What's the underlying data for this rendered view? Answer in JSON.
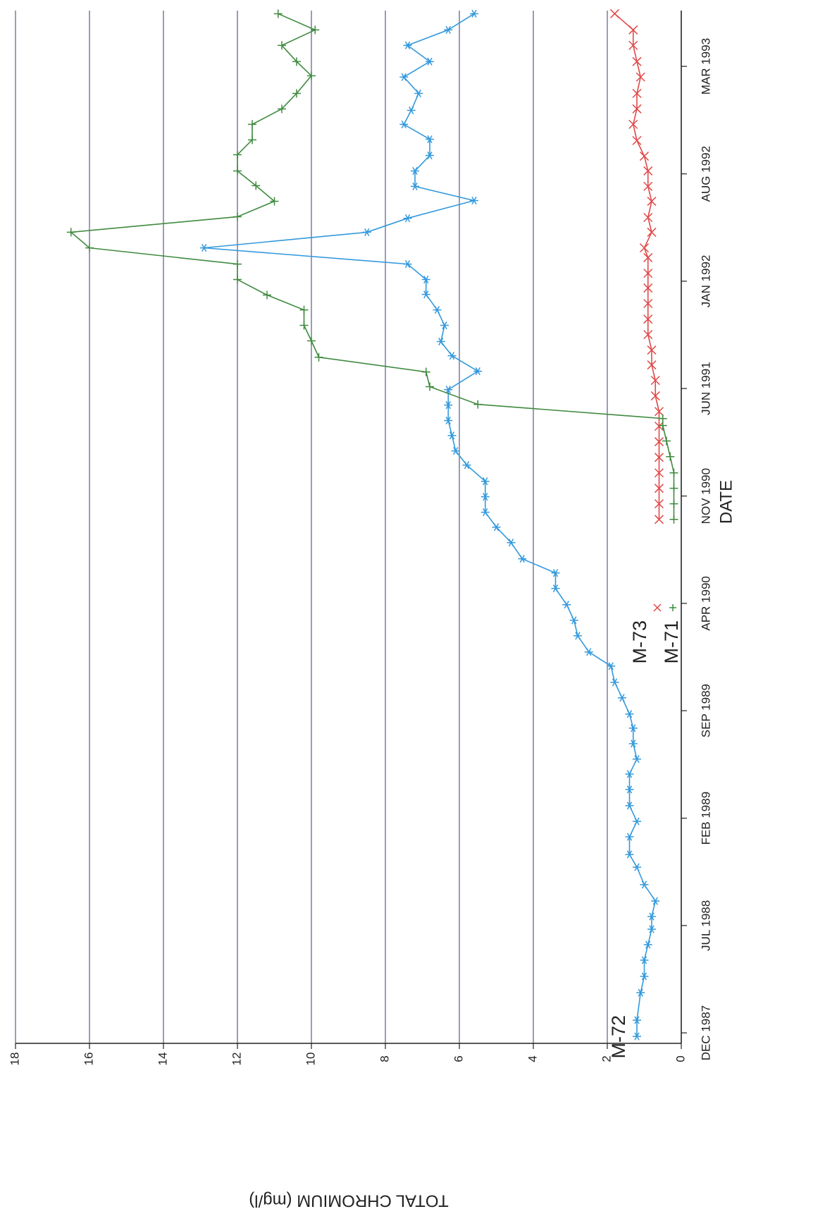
{
  "chart_data": {
    "type": "line",
    "x_label": "DATE",
    "y_label": "TOTAL CHROMIUM (mg/l)",
    "xlim": [
      1987.86,
      1993.47
    ],
    "xticks": [
      {
        "value": 1987.917,
        "label": "DEC 1987"
      },
      {
        "value": 1988.5,
        "label": "JUL 1988"
      },
      {
        "value": 1989.083,
        "label": "FEB 1989"
      },
      {
        "value": 1989.667,
        "label": "SEP 1989"
      },
      {
        "value": 1990.25,
        "label": "APR 1990"
      },
      {
        "value": 1990.833,
        "label": "NOV 1990"
      },
      {
        "value": 1991.417,
        "label": "JUN 1991"
      },
      {
        "value": 1992.0,
        "label": "JAN 1992"
      },
      {
        "value": 1992.583,
        "label": "AUG 1992"
      },
      {
        "value": 1993.167,
        "label": "MAR 1993"
      }
    ],
    "ylim": [
      0,
      18
    ],
    "yticks": [
      0,
      2,
      4,
      6,
      8,
      10,
      12,
      14,
      16,
      18
    ],
    "grid": true,
    "series": [
      {
        "name": "M-72",
        "color": "#3399dd",
        "marker": "asterisk",
        "x": [
          1987.898,
          1987.986,
          1988.135,
          1988.224,
          1988.312,
          1988.396,
          1988.48,
          1988.549,
          1988.633,
          1988.722,
          1988.817,
          1988.886,
          1988.982,
          1989.066,
          1989.151,
          1989.239,
          1989.323,
          1989.404,
          1989.488,
          1989.572,
          1989.649,
          1989.737,
          1989.821,
          1989.909,
          1989.986,
          1990.074,
          1990.158,
          1990.243,
          1990.331,
          1990.415,
          1990.492,
          1990.58,
          1990.664,
          1990.745,
          1990.829,
          1990.913,
          1991.001,
          1991.078,
          1991.162,
          1991.243,
          1991.327,
          1991.411,
          1991.511,
          1991.595,
          1991.672,
          1991.76,
          1991.844,
          1991.928,
          1992.009,
          1992.093,
          1992.181,
          1992.266,
          1992.342,
          1992.438,
          1992.515,
          1992.599,
          1992.683,
          1992.771,
          1992.852,
          1992.928,
          1993.02,
          1993.109,
          1993.193,
          1993.281,
          1993.365,
          1993.453
        ],
        "values": [
          1.2,
          1.2,
          1.1,
          1.0,
          1.0,
          0.9,
          0.8,
          0.8,
          0.7,
          1.0,
          1.2,
          1.4,
          1.4,
          1.2,
          1.4,
          1.4,
          1.4,
          1.2,
          1.3,
          1.3,
          1.4,
          1.6,
          1.8,
          1.9,
          2.5,
          2.8,
          2.9,
          3.1,
          3.4,
          3.4,
          4.3,
          4.6,
          5.0,
          5.3,
          5.3,
          5.3,
          5.8,
          6.1,
          6.2,
          6.3,
          6.3,
          6.3,
          5.5,
          6.2,
          6.5,
          6.4,
          6.6,
          6.9,
          6.9,
          7.4,
          12.9,
          8.5,
          7.4,
          5.6,
          7.2,
          7.2,
          6.8,
          6.8,
          7.5,
          7.3,
          7.1,
          7.5,
          6.8,
          7.4,
          6.3,
          5.6
        ]
      },
      {
        "name": "M-73",
        "color": "#e04848",
        "marker": "cross",
        "x": [
          1990.706,
          1990.791,
          1990.875,
          1990.959,
          1991.043,
          1991.128,
          1991.212,
          1991.292,
          1991.377,
          1991.461,
          1991.545,
          1991.626,
          1991.71,
          1991.794,
          1991.879,
          1991.963,
          1992.043,
          1992.128,
          1992.181,
          1992.266,
          1992.346,
          1992.434,
          1992.515,
          1992.599,
          1992.679,
          1992.764,
          1992.852,
          1992.936,
          1993.02,
          1993.109,
          1993.193,
          1993.281,
          1993.365,
          1993.453
        ],
        "values": [
          0.6,
          0.6,
          0.6,
          0.6,
          0.6,
          0.6,
          0.6,
          0.6,
          0.7,
          0.7,
          0.8,
          0.8,
          0.9,
          0.9,
          0.9,
          0.9,
          0.9,
          0.9,
          1.0,
          0.8,
          0.9,
          0.8,
          0.9,
          0.9,
          1.0,
          1.2,
          1.3,
          1.2,
          1.2,
          1.1,
          1.2,
          1.3,
          1.3,
          1.8
        ]
      },
      {
        "name": "M-71",
        "color": "#3f8a3f",
        "marker": "plus",
        "x": [
          1990.706,
          1990.791,
          1990.875,
          1990.959,
          1991.047,
          1991.132,
          1991.216,
          1991.254,
          1991.331,
          1991.427,
          1991.507,
          1991.587,
          1991.676,
          1991.76,
          1991.844,
          1991.925,
          1992.009,
          1992.093,
          1992.181,
          1992.266,
          1992.35,
          1992.434,
          1992.519,
          1992.599,
          1992.687,
          1992.768,
          1992.852,
          1992.936,
          1993.02,
          1993.116,
          1993.193,
          1993.281,
          1993.365,
          1993.453
        ],
        "values": [
          0.2,
          0.2,
          0.2,
          0.2,
          0.3,
          0.4,
          0.5,
          0.5,
          5.5,
          6.8,
          6.9,
          9.8,
          10.0,
          10.2,
          10.2,
          11.2,
          12.0,
          12.0,
          16.0,
          16.5,
          12.0,
          11.0,
          11.5,
          12.0,
          12.0,
          11.6,
          11.6,
          10.8,
          10.4,
          10.0,
          10.4,
          10.8,
          9.9,
          10.9
        ]
      }
    ]
  }
}
